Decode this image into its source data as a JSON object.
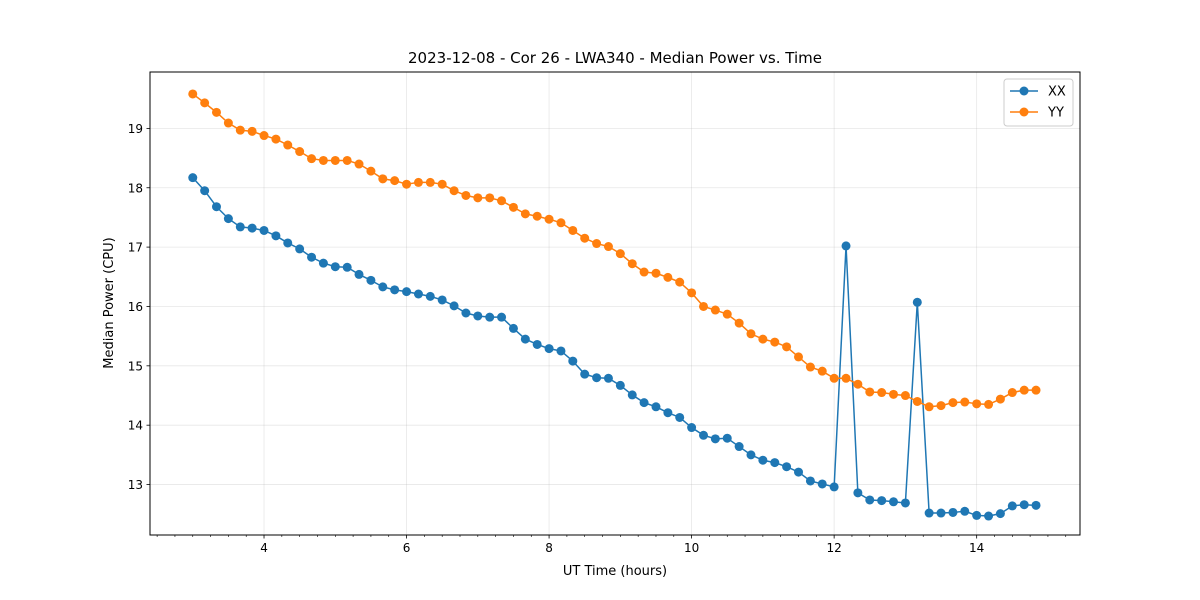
{
  "chart_data": {
    "type": "line",
    "title": "2023-12-08 - Cor 26 - LWA340 - Median Power vs. Time",
    "xlabel": "UT Time (hours)",
    "ylabel": "Median Power (CPU)",
    "xlim": [
      2.4,
      15.45
    ],
    "ylim": [
      12.15,
      19.95
    ],
    "x_ticks": [
      4,
      6,
      8,
      10,
      12,
      14
    ],
    "x_minor_step": 0.25,
    "y_ticks": [
      13,
      14,
      15,
      16,
      17,
      18,
      19
    ],
    "grid": true,
    "legend_position": "top-right",
    "x": [
      3.0,
      3.167,
      3.333,
      3.5,
      3.667,
      3.833,
      4.0,
      4.167,
      4.333,
      4.5,
      4.667,
      4.833,
      5.0,
      5.167,
      5.333,
      5.5,
      5.667,
      5.833,
      6.0,
      6.167,
      6.333,
      6.5,
      6.667,
      6.833,
      7.0,
      7.167,
      7.333,
      7.5,
      7.667,
      7.833,
      8.0,
      8.167,
      8.333,
      8.5,
      8.667,
      8.833,
      9.0,
      9.167,
      9.333,
      9.5,
      9.667,
      9.833,
      10.0,
      10.167,
      10.333,
      10.5,
      10.667,
      10.833,
      11.0,
      11.167,
      11.333,
      11.5,
      11.667,
      11.833,
      12.0,
      12.167,
      12.333,
      12.5,
      12.667,
      12.833,
      13.0,
      13.167,
      13.333,
      13.5,
      13.667,
      13.833,
      14.0,
      14.167,
      14.333,
      14.5,
      14.667,
      14.833
    ],
    "series": [
      {
        "name": "XX",
        "color": "#1f77b4",
        "values": [
          18.17,
          17.95,
          17.68,
          17.48,
          17.34,
          17.32,
          17.28,
          17.19,
          17.07,
          16.97,
          16.83,
          16.73,
          16.67,
          16.66,
          16.54,
          16.44,
          16.33,
          16.28,
          16.25,
          16.21,
          16.17,
          16.11,
          16.01,
          15.89,
          15.84,
          15.82,
          15.82,
          15.63,
          15.45,
          15.36,
          15.29,
          15.25,
          15.08,
          14.86,
          14.8,
          14.79,
          14.67,
          14.51,
          14.38,
          14.31,
          14.21,
          14.13,
          13.96,
          13.83,
          13.77,
          13.78,
          13.64,
          13.5,
          13.41,
          13.37,
          13.3,
          13.21,
          13.06,
          13.01,
          12.96,
          17.02,
          12.86,
          12.74,
          12.73,
          12.71,
          12.69,
          16.07,
          12.52,
          12.52,
          12.53,
          12.55,
          12.48,
          12.47,
          12.51,
          12.64,
          12.66,
          12.65
        ]
      },
      {
        "name": "YY",
        "color": "#ff7f0e",
        "values": [
          19.58,
          19.43,
          19.27,
          19.09,
          18.97,
          18.95,
          18.88,
          18.82,
          18.72,
          18.61,
          18.49,
          18.46,
          18.46,
          18.46,
          18.4,
          18.28,
          18.15,
          18.12,
          18.06,
          18.09,
          18.09,
          18.06,
          17.95,
          17.87,
          17.83,
          17.83,
          17.78,
          17.67,
          17.56,
          17.52,
          17.47,
          17.41,
          17.28,
          17.15,
          17.06,
          17.01,
          16.89,
          16.72,
          16.58,
          16.56,
          16.49,
          16.41,
          16.23,
          16.0,
          15.94,
          15.87,
          15.72,
          15.54,
          15.45,
          15.4,
          15.32,
          15.15,
          14.98,
          14.91,
          14.79,
          14.79,
          14.69,
          14.56,
          14.55,
          14.52,
          14.5,
          14.4,
          14.31,
          14.33,
          14.38,
          14.39,
          14.36,
          14.35,
          14.44,
          14.55,
          14.59,
          14.59
        ]
      }
    ]
  }
}
